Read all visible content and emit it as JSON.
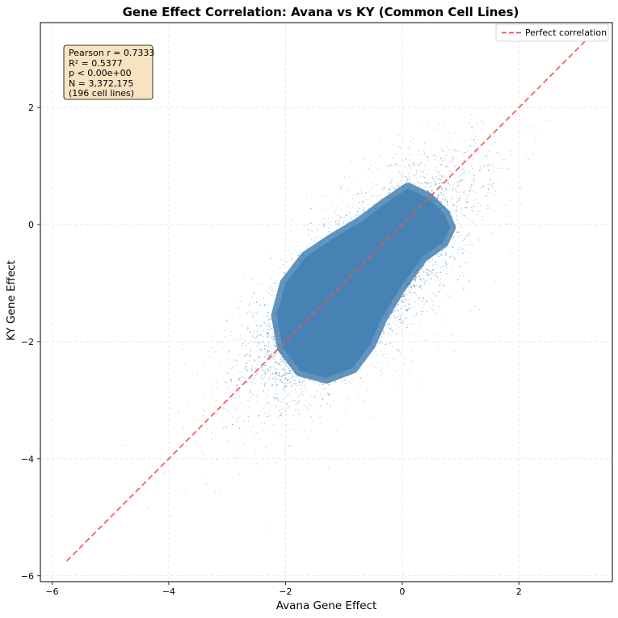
{
  "chart_data": {
    "type": "scatter",
    "title": "Gene Effect Correlation: Avana vs KY (Common Cell Lines)",
    "xlabel": "Avana Gene Effect",
    "ylabel": "KY Gene Effect",
    "xlim": [
      -6.2,
      3.6
    ],
    "ylim": [
      -6.1,
      3.45
    ],
    "xticks": [
      -6,
      -4,
      -2,
      0,
      2
    ],
    "yticks": [
      -6,
      -4,
      -2,
      0,
      2
    ],
    "grid": true,
    "point_color": "#4682b4",
    "reference_line": {
      "label": "Perfect correlation",
      "color": "#ef5350",
      "style": "dashed",
      "x": [
        -5.75,
        3.15
      ],
      "y": [
        -5.75,
        3.15
      ]
    },
    "legend_position": "top-right",
    "stats": [
      "Pearson r = 0.7333",
      "R² = 0.5377",
      "p < 0.00e+00",
      "N = 3,372,175",
      "(196 cell lines)"
    ],
    "stats_box_fill": "#f7e3c0",
    "distribution": {
      "pearson_r": 0.7333,
      "n_points": 3372175,
      "core_center": [
        -0.75,
        -1.0
      ],
      "core_extent_x": [
        -2.2,
        0.85
      ],
      "core_extent_y": [
        -2.7,
        0.55
      ],
      "sparse_extent_x": [
        -5.75,
        3.1
      ],
      "sparse_extent_y": [
        -5.3,
        1.9
      ]
    }
  }
}
